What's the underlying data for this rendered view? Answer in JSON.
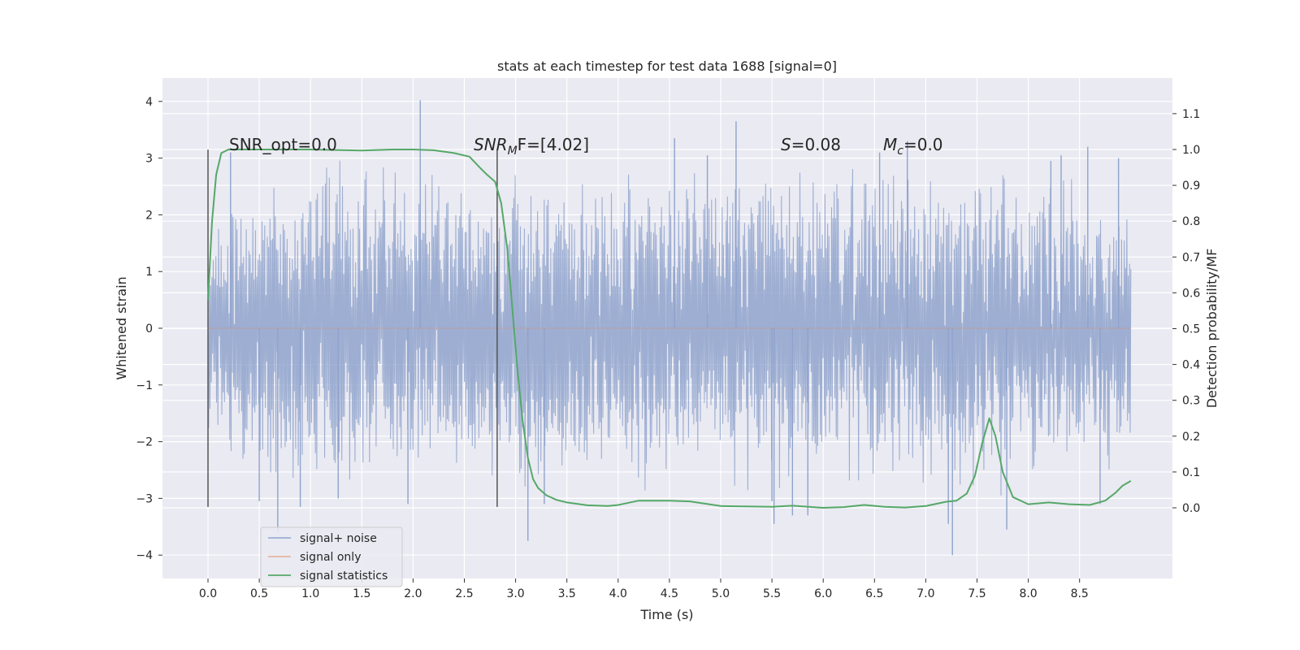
{
  "chart_data": {
    "type": "line",
    "title": "stats at each timestep for test data 1688 [signal=0]",
    "xlabel": "Time (s)",
    "ylabel": "Whitened strain",
    "y2label": "Detection probability/MF",
    "xlim": [
      -0.43,
      9.45
    ],
    "ylim": [
      -4.4,
      4.4
    ],
    "y2lim": [
      -0.195,
      1.197
    ],
    "x_ticks": [
      "0.0",
      "0.5",
      "1.0",
      "1.5",
      "2.0",
      "2.5",
      "3.0",
      "3.5",
      "4.0",
      "4.5",
      "5.0",
      "5.5",
      "6.0",
      "6.5",
      "7.0",
      "7.5",
      "8.0",
      "8.5"
    ],
    "y_ticks": [
      "4",
      "3",
      "2",
      "1",
      "0",
      "−1",
      "−2",
      "−3",
      "−4"
    ],
    "y2_ticks": [
      "1.1",
      "1.0",
      "0.9",
      "0.8",
      "0.7",
      "0.6",
      "0.5",
      "0.4",
      "0.3",
      "0.2",
      "0.1",
      "0.0"
    ],
    "grid": true,
    "legend_position": "lower-left",
    "annotations": {
      "snr_opt": "SNR_opt=0.0",
      "snr_mf_sym": "SNR",
      "snr_mf_sub": "M",
      "snr_mf_rest": "F=[4.02]",
      "s_sym": "S",
      "s_rest": "=0.08",
      "mc_sym": "M",
      "mc_sub": "c",
      "mc_rest": "=0.0"
    },
    "vlines": [
      0.0,
      2.82
    ],
    "series": [
      {
        "name": "signal+ noise",
        "color": "#8fa3cd",
        "axis": "left",
        "x_range": [
          0.0,
          9.0
        ],
        "envelope_upper": [
          [
            0.0,
            1.9
          ],
          [
            0.2,
            2.6
          ],
          [
            0.5,
            2.8
          ],
          [
            1.0,
            2.9
          ],
          [
            2.0,
            3.2
          ],
          [
            2.5,
            2.8
          ],
          [
            3.0,
            2.9
          ],
          [
            3.5,
            2.9
          ],
          [
            4.0,
            2.9
          ],
          [
            5.0,
            3.1
          ],
          [
            6.0,
            2.9
          ],
          [
            7.0,
            3.0
          ],
          [
            8.0,
            2.9
          ],
          [
            9.0,
            2.3
          ]
        ],
        "envelope_lower": [
          [
            0.0,
            -2.0
          ],
          [
            0.2,
            -2.6
          ],
          [
            0.5,
            -2.8
          ],
          [
            1.0,
            -2.8
          ],
          [
            2.0,
            -2.8
          ],
          [
            2.5,
            -2.8
          ],
          [
            3.0,
            -3.0
          ],
          [
            3.5,
            -2.9
          ],
          [
            4.0,
            -2.9
          ],
          [
            5.0,
            -3.0
          ],
          [
            6.0,
            -2.9
          ],
          [
            7.0,
            -3.0
          ],
          [
            8.0,
            -3.0
          ],
          [
            9.0,
            -2.5
          ]
        ],
        "spikes": [
          [
            0.22,
            3.1
          ],
          [
            0.5,
            -3.05
          ],
          [
            0.68,
            -3.6
          ],
          [
            0.9,
            -3.15
          ],
          [
            1.27,
            -3.0
          ],
          [
            1.95,
            -3.1
          ],
          [
            2.07,
            4.02
          ],
          [
            3.12,
            -3.75
          ],
          [
            3.28,
            -3.1
          ],
          [
            4.55,
            3.35
          ],
          [
            4.87,
            3.05
          ],
          [
            5.15,
            3.65
          ],
          [
            5.5,
            -3.05
          ],
          [
            5.52,
            -3.45
          ],
          [
            5.7,
            -3.3
          ],
          [
            5.85,
            -3.3
          ],
          [
            6.55,
            3.1
          ],
          [
            6.82,
            3.3
          ],
          [
            7.22,
            -3.45
          ],
          [
            7.26,
            -4.0
          ],
          [
            7.79,
            -3.55
          ],
          [
            8.22,
            2.95
          ],
          [
            8.32,
            3.05
          ],
          [
            8.58,
            3.2
          ],
          [
            8.7,
            -3.1
          ],
          [
            8.88,
            3.0
          ]
        ]
      },
      {
        "name": "signal only",
        "color": "#dd8452",
        "axis": "left",
        "x": [
          0.0,
          9.0
        ],
        "y": [
          0.0,
          0.0
        ]
      },
      {
        "name": "signal statistics",
        "color": "#55a868",
        "axis": "right",
        "x": [
          0.0,
          0.04,
          0.08,
          0.13,
          0.2,
          0.3,
          0.5,
          1.0,
          1.5,
          1.8,
          2.0,
          2.2,
          2.4,
          2.55,
          2.65,
          2.72,
          2.8,
          2.86,
          2.92,
          2.97,
          3.02,
          3.07,
          3.12,
          3.17,
          3.22,
          3.3,
          3.4,
          3.5,
          3.7,
          3.9,
          4.0,
          4.2,
          4.5,
          4.7,
          5.0,
          5.5,
          5.7,
          6.0,
          6.2,
          6.4,
          6.6,
          6.8,
          7.0,
          7.2,
          7.3,
          7.4,
          7.48,
          7.55,
          7.62,
          7.68,
          7.75,
          7.85,
          8.0,
          8.2,
          8.4,
          8.6,
          8.75,
          8.85,
          8.92,
          9.0
        ],
        "y": [
          0.58,
          0.8,
          0.93,
          0.99,
          1.0,
          1.0,
          1.0,
          1.0,
          0.997,
          1.0,
          1.0,
          0.998,
          0.99,
          0.98,
          0.95,
          0.93,
          0.91,
          0.85,
          0.72,
          0.55,
          0.38,
          0.24,
          0.14,
          0.08,
          0.055,
          0.035,
          0.022,
          0.015,
          0.007,
          0.005,
          0.008,
          0.02,
          0.02,
          0.018,
          0.005,
          0.003,
          0.006,
          0.0,
          0.002,
          0.008,
          0.003,
          0.001,
          0.005,
          0.017,
          0.02,
          0.04,
          0.09,
          0.18,
          0.25,
          0.2,
          0.1,
          0.03,
          0.01,
          0.015,
          0.01,
          0.008,
          0.02,
          0.042,
          0.062,
          0.075
        ]
      }
    ]
  }
}
